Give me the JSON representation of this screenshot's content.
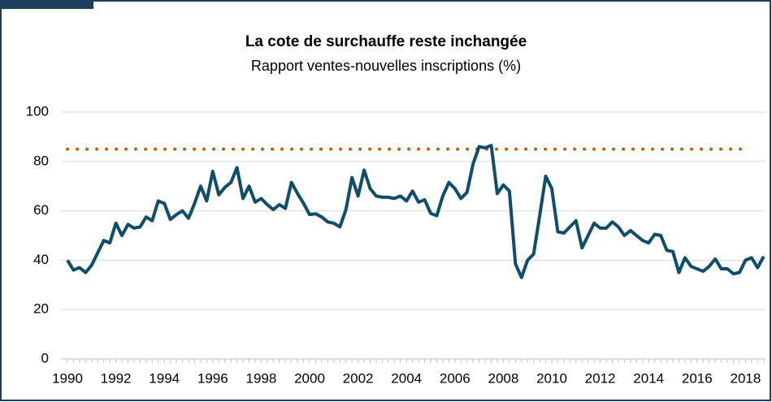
{
  "chart_data": {
    "type": "line",
    "title": "La cote de surchauffe reste inchangée",
    "subtitle": "Rapport ventes-nouvelles inscriptions (%)",
    "categories": [
      "1990",
      null,
      null,
      null,
      null,
      null,
      null,
      null,
      "1992",
      null,
      null,
      null,
      null,
      null,
      null,
      null,
      "1994",
      null,
      null,
      null,
      null,
      null,
      null,
      null,
      "1996",
      null,
      null,
      null,
      null,
      null,
      null,
      null,
      "1998",
      null,
      null,
      null,
      null,
      null,
      null,
      null,
      "2000",
      null,
      null,
      null,
      null,
      null,
      null,
      null,
      "2002",
      null,
      null,
      null,
      null,
      null,
      null,
      null,
      "2004",
      null,
      null,
      null,
      null,
      null,
      null,
      null,
      "2006",
      null,
      null,
      null,
      null,
      null,
      null,
      null,
      "2008",
      null,
      null,
      null,
      null,
      null,
      null,
      null,
      "2010",
      null,
      null,
      null,
      null,
      null,
      null,
      null,
      "2012",
      null,
      null,
      null,
      null,
      null,
      null,
      null,
      "2014",
      null,
      null,
      null,
      null,
      null,
      null,
      null,
      "2016",
      null,
      null,
      null,
      null,
      null,
      null,
      null,
      "2018",
      null,
      null,
      null
    ],
    "series": [
      {
        "color": "#0f4d6b",
        "values": [
          40,
          36,
          37,
          35,
          38,
          43,
          48,
          47,
          55,
          50,
          54.5,
          53,
          53.5,
          57.5,
          56,
          64,
          63,
          56.5,
          58.5,
          60,
          57,
          63,
          70,
          64,
          76,
          66.5,
          69.5,
          71.5,
          77.5,
          65,
          70,
          63.5,
          65,
          62.5,
          60.5,
          62.5,
          61,
          71.5,
          67,
          63,
          58.5,
          58.8,
          57.5,
          55.5,
          55,
          53.5,
          60.5,
          73.5,
          66,
          76.5,
          69,
          66,
          65.5,
          65.5,
          65,
          66,
          64,
          68,
          63.5,
          64.5,
          59,
          58,
          66,
          71.5,
          69,
          65,
          67.5,
          79,
          86,
          85.5,
          86.5,
          67,
          70.5,
          68,
          38.5,
          33,
          40,
          42.5,
          58,
          74,
          69,
          51.5,
          51,
          53.5,
          56,
          45,
          50,
          55,
          53,
          53,
          55.5,
          53.5,
          50,
          52,
          50,
          48,
          47,
          50.5,
          50,
          44,
          43.5,
          35,
          41,
          37.5,
          36.5,
          35.5,
          37.5,
          40.5,
          36.5,
          36.5,
          34.5,
          35,
          40,
          41,
          37,
          41.5
        ]
      }
    ],
    "reference_line": {
      "value": 85,
      "color": "#c55a11"
    },
    "ylim": [
      0,
      100
    ],
    "yticks": [
      0,
      20,
      40,
      60,
      80,
      100
    ],
    "grid": true
  }
}
